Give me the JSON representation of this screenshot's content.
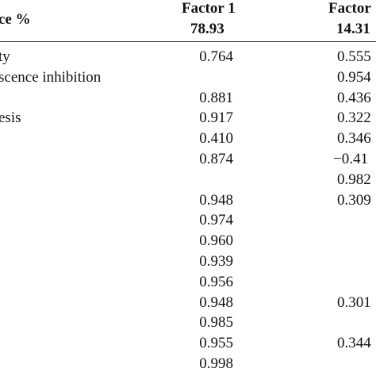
{
  "header": {
    "label": "ce %",
    "columns": [
      {
        "title": "Factor 1",
        "value": "78.93"
      },
      {
        "title": "Factor",
        "value": "14.31"
      }
    ]
  },
  "table": {
    "rows": [
      [
        "ty",
        "0.764",
        "0.555"
      ],
      [
        "scence inhibition",
        null,
        "0.954"
      ],
      [
        null,
        "0.881",
        "0.436"
      ],
      [
        "esis",
        "0.917",
        "0.322"
      ],
      [
        null,
        "0.410",
        "0.346"
      ],
      [
        null,
        "0.874",
        "−0.41"
      ],
      [
        null,
        null,
        "0.982"
      ],
      [
        null,
        "0.948",
        "0.309"
      ],
      [
        null,
        "0.974",
        null
      ],
      [
        null,
        "0.960",
        null
      ],
      [
        null,
        "0.939",
        null
      ],
      [
        null,
        "0.956",
        null
      ],
      [
        null,
        "0.948",
        "0.301"
      ],
      [
        null,
        "0.985",
        null
      ],
      [
        null,
        "0.955",
        "0.344"
      ],
      [
        null,
        "0.998",
        null
      ]
    ]
  }
}
